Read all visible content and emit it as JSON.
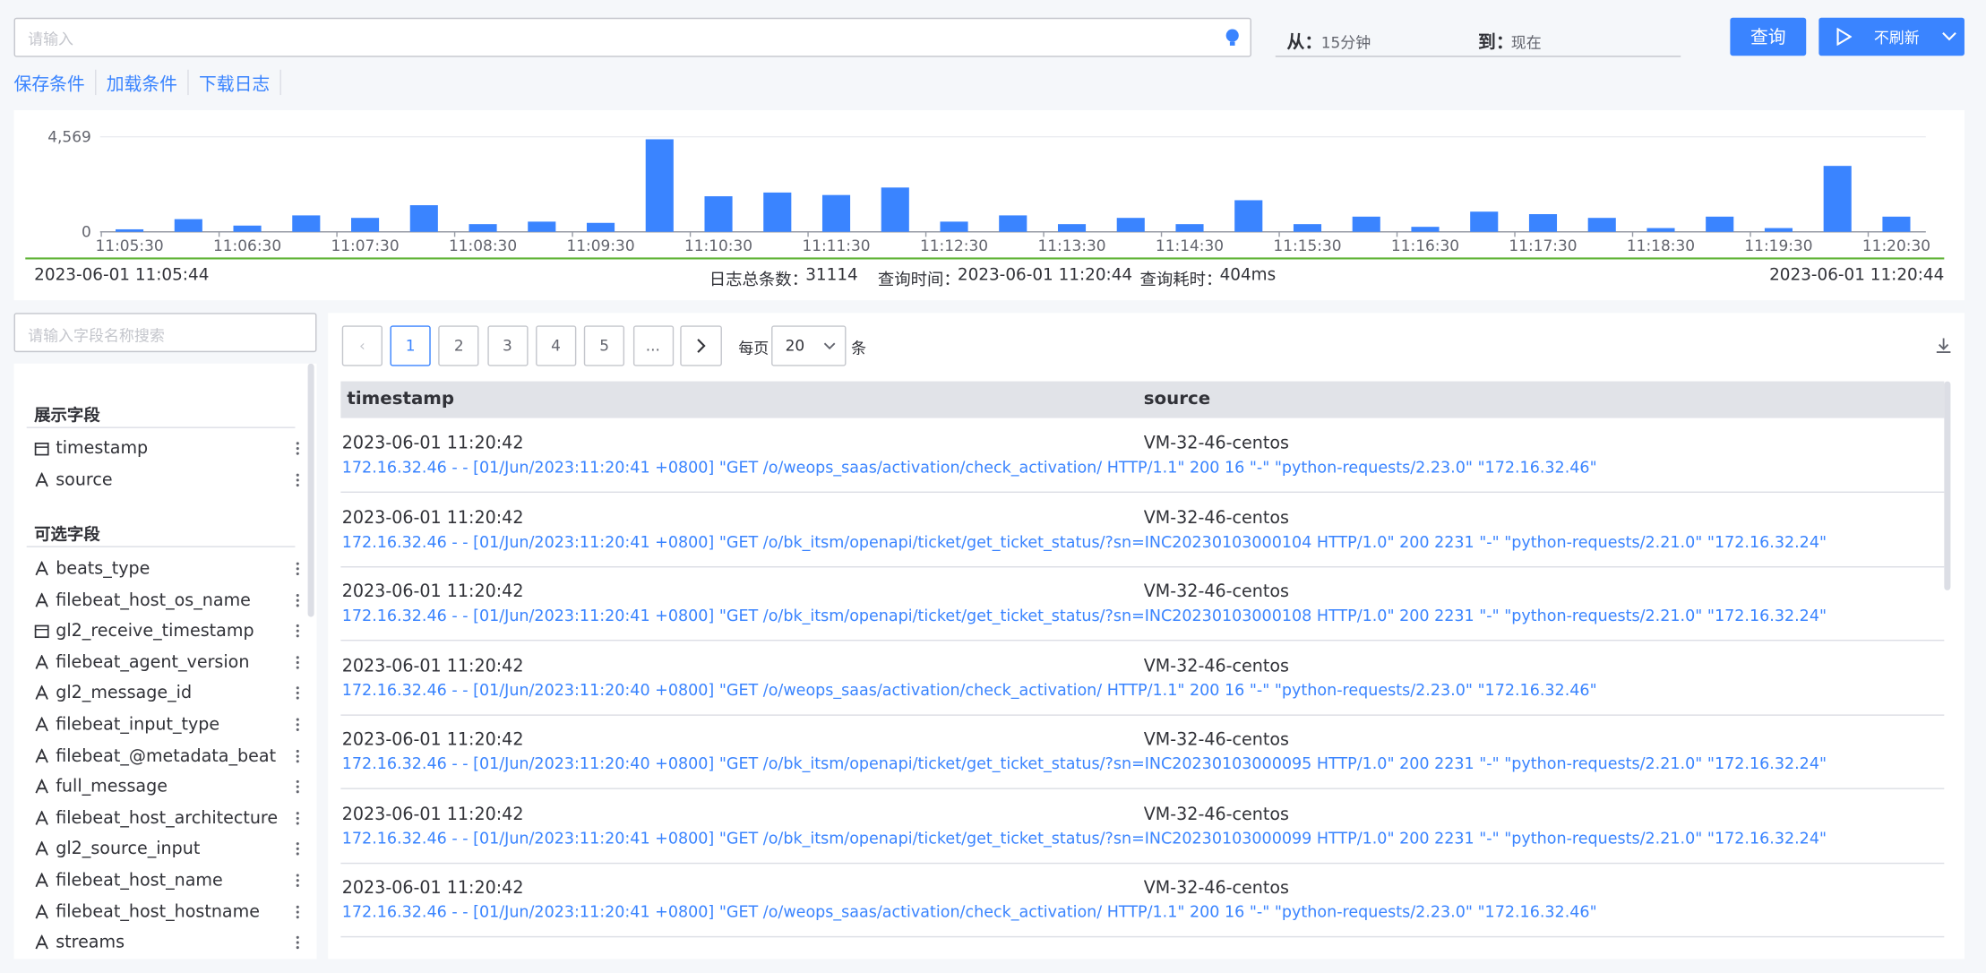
{
  "toolbar": {
    "search_placeholder": "请输入",
    "from_label": "从：",
    "from_value": "15分钟",
    "to_label": "到：",
    "to_value": "现在",
    "query_button": "查询",
    "refresh_button": "不刷新"
  },
  "actions": [
    "保存条件",
    "加载条件",
    "下载日志"
  ],
  "chart_data": {
    "type": "bar",
    "categories": [
      "11:05:30",
      null,
      "11:06:30",
      null,
      "11:07:30",
      null,
      "11:08:30",
      null,
      "11:09:30",
      null,
      "11:10:30",
      null,
      "11:11:30",
      null,
      "11:12:30",
      null,
      "11:13:30",
      null,
      "11:14:30",
      null,
      "11:15:30",
      null,
      "11:16:30",
      null,
      "11:17:30",
      null,
      "11:18:30",
      null,
      "11:19:30",
      null,
      "11:20:30"
    ],
    "values": [
      120,
      610,
      300,
      790,
      670,
      1280,
      370,
      490,
      430,
      4450,
      1710,
      1890,
      1770,
      2130,
      490,
      790,
      370,
      670,
      370,
      1520,
      370,
      730,
      240,
      970,
      850,
      670,
      180,
      730,
      180,
      3170,
      730
    ],
    "color": "#3a84ff",
    "ylim": [
      0,
      4569
    ],
    "yticks": [
      0,
      {
        "value": 4569,
        "label": "4,569"
      }
    ],
    "grid": true
  },
  "summary": {
    "start": "2023-06-01 11:05:44",
    "total_label": "日志总条数：",
    "total": 31114,
    "query_time_label": "查询时间：",
    "query_time": "2023-06-01 11:20:44",
    "duration_label": "查询耗时：",
    "duration": "404ms",
    "end": "2023-06-01 11:20:44"
  },
  "fields": {
    "search_placeholder": "请输入字段名称搜索",
    "display_title": "展示字段",
    "display": [
      "timestamp",
      "source"
    ],
    "optional_title": "可选字段",
    "optional": [
      "beats_type",
      "filebeat_host_os_name",
      "gl2_receive_timestamp",
      "filebeat_agent_version",
      "gl2_message_id",
      "filebeat_input_type",
      "filebeat_@metadata_beat",
      "full_message",
      "filebeat_host_architecture",
      "gl2_source_input",
      "filebeat_host_name",
      "filebeat_host_hostname",
      "streams"
    ]
  },
  "pagination": {
    "pages": [
      1,
      2,
      3,
      4,
      5,
      "..."
    ],
    "per_page_label": "每页",
    "per_page": 20,
    "unit": "条"
  },
  "table": {
    "columns": [
      "timestamp",
      "source"
    ],
    "rows": [
      {
        "timestamp": "2023-06-01 11:20:42",
        "source": "VM-32-46-centos",
        "message": "172.16.32.46 - - [01/Jun/2023:11:20:41 +0800] \"GET /o/weops_saas/activation/check_activation/ HTTP/1.1\" 200 16 \"-\" \"python-requests/2.23.0\" \"172.16.32.46\""
      },
      {
        "timestamp": "2023-06-01 11:20:42",
        "source": "VM-32-46-centos",
        "message": "172.16.32.46 - - [01/Jun/2023:11:20:41 +0800] \"GET /o/bk_itsm/openapi/ticket/get_ticket_status/?sn=INC20230103000104 HTTP/1.0\" 200 2231 \"-\" \"python-requests/2.21.0\" \"172.16.32.24\""
      },
      {
        "timestamp": "2023-06-01 11:20:42",
        "source": "VM-32-46-centos",
        "message": "172.16.32.46 - - [01/Jun/2023:11:20:41 +0800] \"GET /o/bk_itsm/openapi/ticket/get_ticket_status/?sn=INC20230103000108 HTTP/1.0\" 200 2231 \"-\" \"python-requests/2.21.0\" \"172.16.32.24\""
      },
      {
        "timestamp": "2023-06-01 11:20:42",
        "source": "VM-32-46-centos",
        "message": "172.16.32.46 - - [01/Jun/2023:11:20:40 +0800] \"GET /o/weops_saas/activation/check_activation/ HTTP/1.1\" 200 16 \"-\" \"python-requests/2.23.0\" \"172.16.32.46\""
      },
      {
        "timestamp": "2023-06-01 11:20:42",
        "source": "VM-32-46-centos",
        "message": "172.16.32.46 - - [01/Jun/2023:11:20:40 +0800] \"GET /o/bk_itsm/openapi/ticket/get_ticket_status/?sn=INC20230103000095 HTTP/1.0\" 200 2231 \"-\" \"python-requests/2.21.0\" \"172.16.32.24\""
      },
      {
        "timestamp": "2023-06-01 11:20:42",
        "source": "VM-32-46-centos",
        "message": "172.16.32.46 - - [01/Jun/2023:11:20:41 +0800] \"GET /o/bk_itsm/openapi/ticket/get_ticket_status/?sn=INC20230103000099 HTTP/1.0\" 200 2231 \"-\" \"python-requests/2.21.0\" \"172.16.32.24\""
      },
      {
        "timestamp": "2023-06-01 11:20:42",
        "source": "VM-32-46-centos",
        "message": "172.16.32.46 - - [01/Jun/2023:11:20:41 +0800] \"GET /o/weops_saas/activation/check_activation/ HTTP/1.1\" 200 16 \"-\" \"python-requests/2.23.0\" \"172.16.32.46\""
      }
    ]
  }
}
